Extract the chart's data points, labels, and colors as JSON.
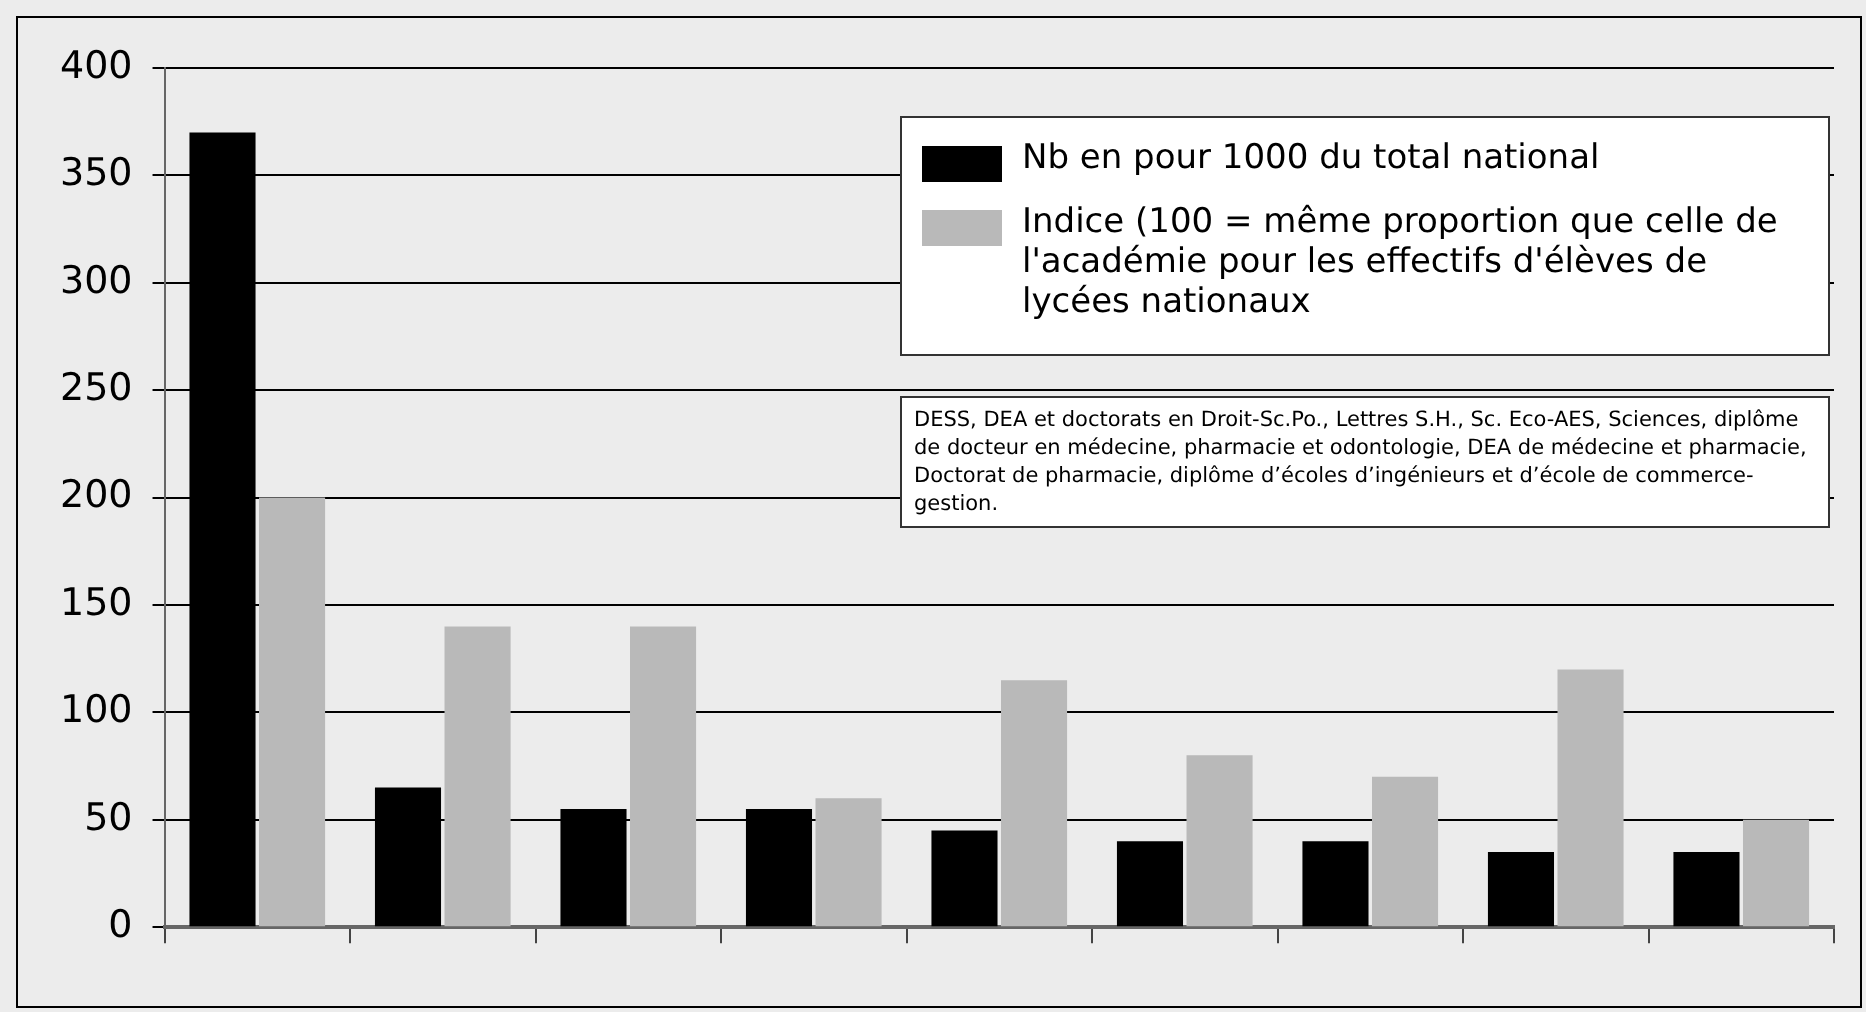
{
  "chart_data": {
    "type": "bar",
    "categories": [
      null,
      null,
      null,
      null,
      null,
      null,
      null,
      null,
      null
    ],
    "series": [
      {
        "name": "Nb en pour 1000 du total national",
        "color": "#000000",
        "values": [
          370,
          65,
          55,
          55,
          45,
          40,
          40,
          35,
          35
        ]
      },
      {
        "name": "Indice (100 = même proportion que celle de l'académie pour les effectifs d'élèves de lycées nationaux",
        "color": "#b9b9b9",
        "values": [
          200,
          140,
          140,
          60,
          115,
          80,
          70,
          120,
          50
        ]
      }
    ],
    "ylim": [
      0,
      400
    ],
    "yticks": [
      0,
      50,
      100,
      150,
      200,
      250,
      300,
      350,
      400
    ],
    "grid": "y",
    "legend": "top right",
    "annotations": [
      "DESS, DEA et doctorats en Droit-Sc.Po., Lettres S.H., Sc. Eco-AES, Sciences, diplôme de docteur en médecine, pharmacie et odontologie, DEA de médecine et pharmacie, Doctorat de pharmacie, diplôme d’écoles d’ingénieurs et d’école de commerce-gestion."
    ]
  }
}
